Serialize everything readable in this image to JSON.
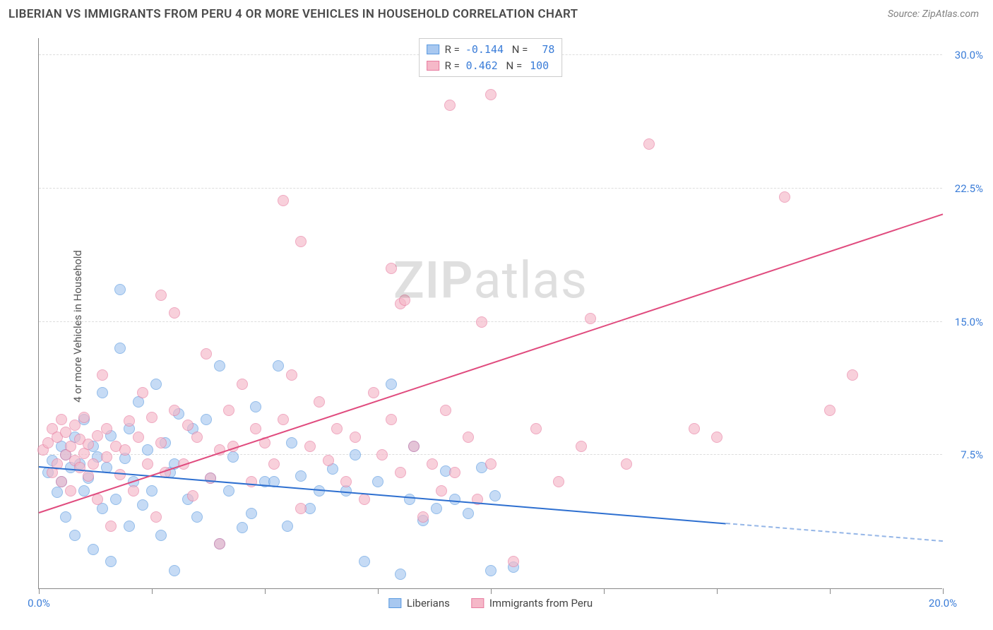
{
  "title": "LIBERIAN VS IMMIGRANTS FROM PERU 4 OR MORE VEHICLES IN HOUSEHOLD CORRELATION CHART",
  "source": "Source: ZipAtlas.com",
  "ylabel": "4 or more Vehicles in Household",
  "watermark_bold": "ZIP",
  "watermark_rest": "atlas",
  "chart": {
    "type": "scatter",
    "xlim": [
      0,
      20
    ],
    "ylim": [
      0,
      31
    ],
    "xtick_positions": [
      0,
      2.5,
      5,
      7.5,
      10,
      12.5,
      15,
      17.5,
      20
    ],
    "xtick_labels": {
      "0": "0.0%",
      "20": "20.0%"
    },
    "ytick_positions": [
      7.5,
      15,
      22.5,
      30
    ],
    "ytick_labels": [
      "7.5%",
      "15.0%",
      "22.5%",
      "30.0%"
    ],
    "grid_color": "#dddddd",
    "background_color": "#ffffff",
    "axis_color": "#888888",
    "tick_label_color": "#3b7dd8",
    "series": [
      {
        "name": "Liberians",
        "color_fill": "#a8c8f0",
        "color_stroke": "#5a9ae0",
        "marker_size": 16,
        "opacity": 0.65,
        "R": "-0.144",
        "N": "78",
        "trend": {
          "x1": 0,
          "y1": 6.8,
          "x2": 15.2,
          "y2": 3.6,
          "dash_x2": 20,
          "dash_y2": 2.6,
          "color": "#2d6fd0",
          "width": 2
        },
        "points": [
          [
            0.2,
            6.5
          ],
          [
            0.3,
            7.2
          ],
          [
            0.4,
            5.4
          ],
          [
            0.5,
            8.0
          ],
          [
            0.5,
            6.0
          ],
          [
            0.6,
            7.5
          ],
          [
            0.6,
            4.0
          ],
          [
            0.7,
            6.8
          ],
          [
            0.8,
            8.5
          ],
          [
            0.8,
            3.0
          ],
          [
            0.9,
            7.0
          ],
          [
            1.0,
            9.5
          ],
          [
            1.0,
            5.5
          ],
          [
            1.1,
            6.2
          ],
          [
            1.2,
            8.0
          ],
          [
            1.2,
            2.2
          ],
          [
            1.3,
            7.4
          ],
          [
            1.4,
            11.0
          ],
          [
            1.4,
            4.5
          ],
          [
            1.5,
            6.8
          ],
          [
            1.6,
            8.6
          ],
          [
            1.6,
            1.5
          ],
          [
            1.7,
            5.0
          ],
          [
            1.8,
            13.5
          ],
          [
            1.8,
            16.8
          ],
          [
            1.9,
            7.3
          ],
          [
            2.0,
            9.0
          ],
          [
            2.0,
            3.5
          ],
          [
            2.1,
            6.0
          ],
          [
            2.2,
            10.5
          ],
          [
            2.3,
            4.7
          ],
          [
            2.4,
            7.8
          ],
          [
            2.5,
            5.5
          ],
          [
            2.6,
            11.5
          ],
          [
            2.7,
            3.0
          ],
          [
            2.8,
            8.2
          ],
          [
            2.9,
            6.5
          ],
          [
            3.0,
            7.0
          ],
          [
            3.0,
            1.0
          ],
          [
            3.1,
            9.8
          ],
          [
            3.3,
            5.0
          ],
          [
            3.4,
            9.0
          ],
          [
            3.5,
            4.0
          ],
          [
            3.7,
            9.5
          ],
          [
            3.8,
            6.2
          ],
          [
            4.0,
            2.5
          ],
          [
            4.0,
            12.5
          ],
          [
            4.2,
            5.5
          ],
          [
            4.3,
            7.4
          ],
          [
            4.5,
            3.4
          ],
          [
            4.7,
            4.2
          ],
          [
            4.8,
            10.2
          ],
          [
            5.0,
            6.0
          ],
          [
            5.2,
            6.0
          ],
          [
            5.3,
            12.5
          ],
          [
            5.5,
            3.5
          ],
          [
            5.6,
            8.2
          ],
          [
            5.8,
            6.3
          ],
          [
            6.0,
            4.5
          ],
          [
            6.2,
            5.5
          ],
          [
            6.5,
            6.7
          ],
          [
            6.8,
            5.5
          ],
          [
            7.0,
            7.5
          ],
          [
            7.2,
            1.5
          ],
          [
            7.5,
            6.0
          ],
          [
            7.8,
            11.5
          ],
          [
            8.0,
            0.8
          ],
          [
            8.2,
            5.0
          ],
          [
            8.3,
            8.0
          ],
          [
            8.5,
            3.8
          ],
          [
            8.8,
            4.5
          ],
          [
            9.0,
            6.6
          ],
          [
            9.2,
            5.0
          ],
          [
            9.5,
            4.2
          ],
          [
            10.0,
            1.0
          ],
          [
            10.5,
            1.2
          ],
          [
            10.1,
            5.2
          ],
          [
            9.8,
            6.8
          ]
        ]
      },
      {
        "name": "Immigrants from Peru",
        "color_fill": "#f5b8c8",
        "color_stroke": "#e87ca0",
        "marker_size": 16,
        "opacity": 0.65,
        "R": "0.462",
        "N": "100",
        "trend": {
          "x1": 0,
          "y1": 4.2,
          "x2": 20,
          "y2": 21.0,
          "color": "#e04b7e",
          "width": 2
        },
        "points": [
          [
            0.1,
            7.8
          ],
          [
            0.2,
            8.2
          ],
          [
            0.3,
            6.5
          ],
          [
            0.3,
            9.0
          ],
          [
            0.4,
            7.0
          ],
          [
            0.4,
            8.5
          ],
          [
            0.5,
            6.0
          ],
          [
            0.5,
            9.5
          ],
          [
            0.6,
            7.5
          ],
          [
            0.6,
            8.8
          ],
          [
            0.7,
            5.5
          ],
          [
            0.7,
            8.0
          ],
          [
            0.8,
            7.2
          ],
          [
            0.8,
            9.2
          ],
          [
            0.9,
            6.8
          ],
          [
            0.9,
            8.4
          ],
          [
            1.0,
            7.6
          ],
          [
            1.0,
            9.6
          ],
          [
            1.1,
            6.3
          ],
          [
            1.1,
            8.1
          ],
          [
            1.2,
            7.0
          ],
          [
            1.3,
            8.6
          ],
          [
            1.3,
            5.0
          ],
          [
            1.4,
            12.0
          ],
          [
            1.5,
            7.4
          ],
          [
            1.5,
            9.0
          ],
          [
            1.6,
            3.5
          ],
          [
            1.7,
            8.0
          ],
          [
            1.8,
            6.4
          ],
          [
            1.9,
            7.8
          ],
          [
            2.0,
            9.4
          ],
          [
            2.1,
            5.5
          ],
          [
            2.2,
            8.5
          ],
          [
            2.3,
            11.0
          ],
          [
            2.4,
            7.0
          ],
          [
            2.5,
            9.6
          ],
          [
            2.6,
            4.0
          ],
          [
            2.7,
            8.2
          ],
          [
            2.7,
            16.5
          ],
          [
            2.8,
            6.5
          ],
          [
            3.0,
            10.0
          ],
          [
            3.0,
            15.5
          ],
          [
            3.2,
            7.0
          ],
          [
            3.3,
            9.2
          ],
          [
            3.4,
            5.2
          ],
          [
            3.5,
            8.5
          ],
          [
            3.7,
            13.2
          ],
          [
            3.8,
            6.2
          ],
          [
            4.0,
            7.8
          ],
          [
            4.0,
            2.5
          ],
          [
            4.2,
            10.0
          ],
          [
            4.3,
            8.0
          ],
          [
            4.5,
            11.5
          ],
          [
            4.7,
            6.0
          ],
          [
            4.8,
            9.0
          ],
          [
            5.0,
            8.2
          ],
          [
            5.2,
            7.0
          ],
          [
            5.4,
            9.5
          ],
          [
            5.4,
            21.8
          ],
          [
            5.6,
            12.0
          ],
          [
            5.8,
            4.5
          ],
          [
            5.8,
            19.5
          ],
          [
            6.0,
            8.0
          ],
          [
            6.2,
            10.5
          ],
          [
            6.4,
            7.2
          ],
          [
            6.6,
            9.0
          ],
          [
            6.8,
            6.0
          ],
          [
            7.0,
            8.5
          ],
          [
            7.2,
            5.0
          ],
          [
            7.4,
            11.0
          ],
          [
            7.6,
            7.5
          ],
          [
            7.8,
            9.5
          ],
          [
            7.8,
            18.0
          ],
          [
            8.0,
            6.5
          ],
          [
            8.0,
            16.0
          ],
          [
            8.1,
            16.2
          ],
          [
            8.3,
            8.0
          ],
          [
            8.5,
            4.0
          ],
          [
            8.7,
            7.0
          ],
          [
            8.9,
            5.5
          ],
          [
            9.0,
            10.0
          ],
          [
            9.1,
            27.2
          ],
          [
            9.2,
            6.5
          ],
          [
            9.5,
            8.5
          ],
          [
            9.7,
            5.0
          ],
          [
            9.8,
            15.0
          ],
          [
            10.0,
            7.0
          ],
          [
            10.0,
            27.8
          ],
          [
            10.5,
            1.5
          ],
          [
            11.0,
            9.0
          ],
          [
            11.5,
            6.0
          ],
          [
            12.0,
            8.0
          ],
          [
            12.2,
            15.2
          ],
          [
            13.0,
            7.0
          ],
          [
            13.5,
            25.0
          ],
          [
            14.5,
            9.0
          ],
          [
            15.0,
            8.5
          ],
          [
            16.5,
            22.0
          ],
          [
            17.5,
            10.0
          ],
          [
            18.0,
            12.0
          ]
        ]
      }
    ]
  },
  "legend_bottom": [
    {
      "label": "Liberians",
      "fill": "#a8c8f0",
      "stroke": "#5a9ae0"
    },
    {
      "label": "Immigrants from Peru",
      "fill": "#f5b8c8",
      "stroke": "#e87ca0"
    }
  ]
}
